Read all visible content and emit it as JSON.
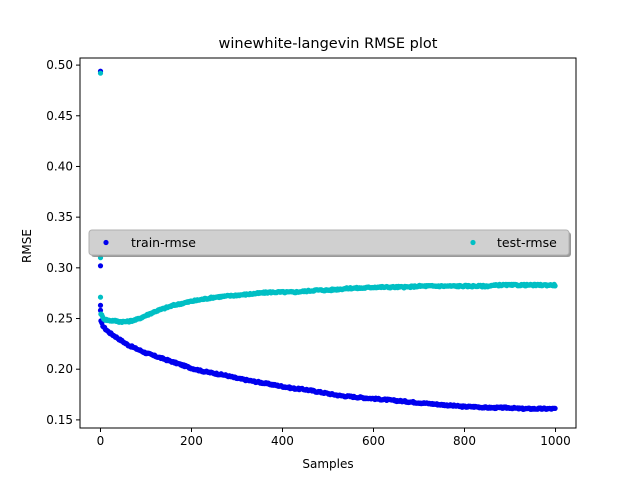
{
  "chart_data": {
    "type": "scatter",
    "title": "winewhite-langevin RMSE plot",
    "xlabel": "Samples",
    "ylabel": "RMSE",
    "xlim": [
      -45,
      1045
    ],
    "ylim": [
      0.142,
      0.507
    ],
    "xticks": [
      0,
      200,
      400,
      600,
      800,
      1000
    ],
    "yticks": [
      0.15,
      0.2,
      0.25,
      0.3,
      0.35,
      0.4,
      0.45,
      0.5
    ],
    "ytick_labels": [
      "0.15",
      "0.20",
      "0.25",
      "0.30",
      "0.35",
      "0.40",
      "0.45",
      "0.50"
    ],
    "grid": false,
    "legend_position": "center",
    "series": [
      {
        "name": "train-rmse",
        "color": "#0000ee",
        "outliers": [
          [
            0,
            0.494
          ],
          [
            0,
            0.302
          ],
          [
            0,
            0.263
          ],
          [
            0,
            0.258
          ]
        ],
        "x": [
          1,
          5,
          10,
          20,
          30,
          40,
          50,
          60,
          70,
          80,
          90,
          100,
          120,
          140,
          160,
          180,
          200,
          225,
          250,
          275,
          300,
          325,
          350,
          375,
          400,
          425,
          450,
          475,
          500,
          525,
          550,
          575,
          600,
          625,
          650,
          675,
          700,
          725,
          750,
          775,
          800,
          825,
          850,
          875,
          900,
          925,
          950,
          975,
          1000
        ],
        "y": [
          0.247,
          0.243,
          0.24,
          0.236,
          0.233,
          0.23,
          0.227,
          0.224,
          0.222,
          0.22,
          0.218,
          0.216,
          0.213,
          0.21,
          0.207,
          0.204,
          0.201,
          0.198,
          0.196,
          0.194,
          0.191,
          0.189,
          0.187,
          0.185,
          0.183,
          0.181,
          0.18,
          0.178,
          0.176,
          0.174,
          0.173,
          0.172,
          0.171,
          0.17,
          0.169,
          0.168,
          0.167,
          0.166,
          0.165,
          0.164,
          0.163,
          0.163,
          0.162,
          0.162,
          0.162,
          0.161,
          0.161,
          0.161,
          0.161
        ]
      },
      {
        "name": "test-rmse",
        "color": "#00bfc4",
        "outliers": [
          [
            0,
            0.492
          ],
          [
            0,
            0.31
          ],
          [
            0,
            0.271
          ]
        ],
        "x": [
          1,
          5,
          10,
          20,
          30,
          40,
          50,
          60,
          70,
          80,
          90,
          100,
          120,
          140,
          160,
          180,
          200,
          225,
          250,
          275,
          300,
          325,
          350,
          375,
          400,
          425,
          450,
          475,
          500,
          525,
          550,
          575,
          600,
          625,
          650,
          675,
          700,
          725,
          750,
          775,
          800,
          825,
          850,
          875,
          900,
          925,
          950,
          975,
          1000
        ],
        "y": [
          0.255,
          0.251,
          0.249,
          0.248,
          0.248,
          0.247,
          0.247,
          0.247,
          0.248,
          0.249,
          0.251,
          0.253,
          0.257,
          0.26,
          0.263,
          0.265,
          0.267,
          0.269,
          0.271,
          0.272,
          0.273,
          0.274,
          0.275,
          0.276,
          0.276,
          0.276,
          0.277,
          0.278,
          0.278,
          0.279,
          0.28,
          0.28,
          0.281,
          0.281,
          0.281,
          0.281,
          0.282,
          0.282,
          0.282,
          0.282,
          0.282,
          0.282,
          0.282,
          0.283,
          0.283,
          0.283,
          0.283,
          0.283,
          0.283
        ]
      }
    ]
  }
}
